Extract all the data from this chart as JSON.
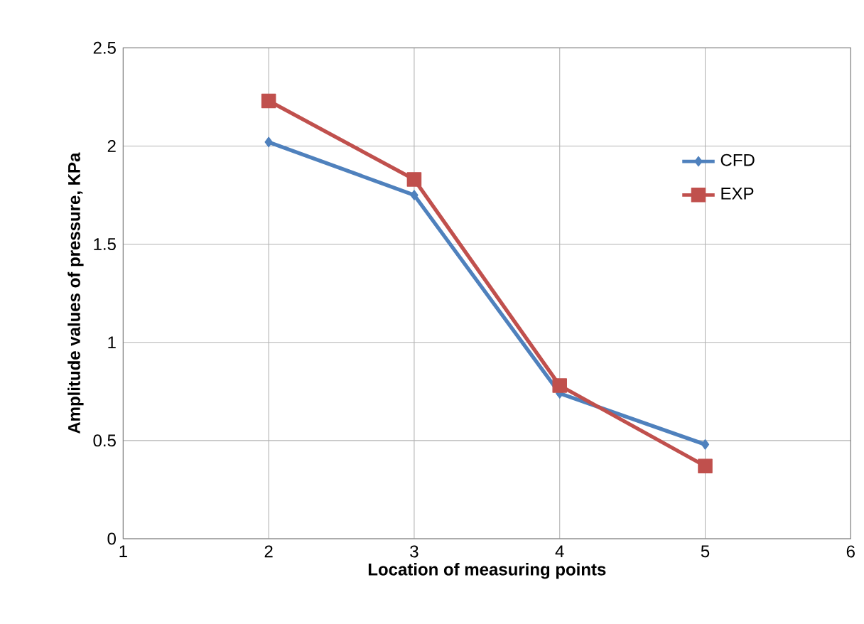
{
  "chart_data": {
    "type": "line",
    "xlabel": "Location of measuring points",
    "ylabel": "Amplitude values of pressure, KPa",
    "x": [
      2,
      3,
      4,
      5
    ],
    "series": [
      {
        "name": "CFD",
        "color": "#4f81bd",
        "marker": "diamond",
        "values": [
          2.02,
          1.75,
          0.74,
          0.48
        ]
      },
      {
        "name": "EXP",
        "color": "#c0504d",
        "marker": "square",
        "values": [
          2.23,
          1.83,
          0.78,
          0.37
        ]
      }
    ],
    "xlim": [
      1,
      6
    ],
    "xticks": [
      1,
      2,
      3,
      4,
      5,
      6
    ],
    "ylim": [
      0,
      2.5
    ],
    "yticks": [
      0,
      0.5,
      1,
      1.5,
      2,
      2.5
    ],
    "grid": true,
    "legend": "top right",
    "line_style": "solid"
  }
}
